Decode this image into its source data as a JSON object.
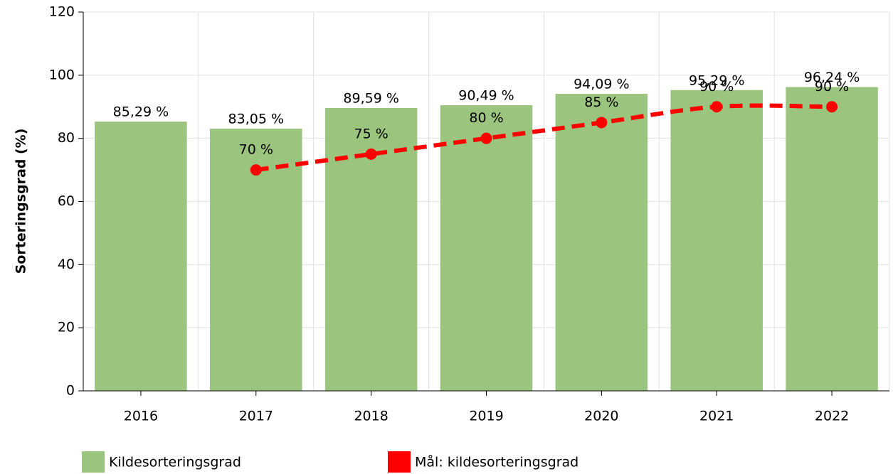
{
  "chart_data": {
    "type": "bar",
    "categories": [
      "2016",
      "2017",
      "2018",
      "2019",
      "2020",
      "2021",
      "2022"
    ],
    "y_label": "Sorteringsgrad (%)",
    "ylim": [
      0,
      120
    ],
    "yticks": [
      0,
      20,
      40,
      60,
      80,
      100,
      120
    ],
    "grid": true,
    "series": [
      {
        "name": "Kildesorteringsgrad",
        "type": "bar",
        "color": "#9bc47e",
        "values": [
          85.29,
          83.05,
          89.59,
          90.49,
          94.09,
          95.29,
          96.24
        ],
        "value_labels": [
          "85,29 %",
          "83,05 %",
          "89,59 %",
          "90,49 %",
          "94,09 %",
          "95,29 %",
          "96,24 %"
        ]
      },
      {
        "name": "Mål: kildesorteringsgrad",
        "type": "line",
        "color": "#ff0000",
        "values": [
          null,
          70,
          75,
          80,
          85,
          90,
          90
        ],
        "value_labels": [
          null,
          "70 %",
          "75 %",
          "80 %",
          "85 %",
          "90 %",
          "90 %"
        ]
      }
    ]
  }
}
